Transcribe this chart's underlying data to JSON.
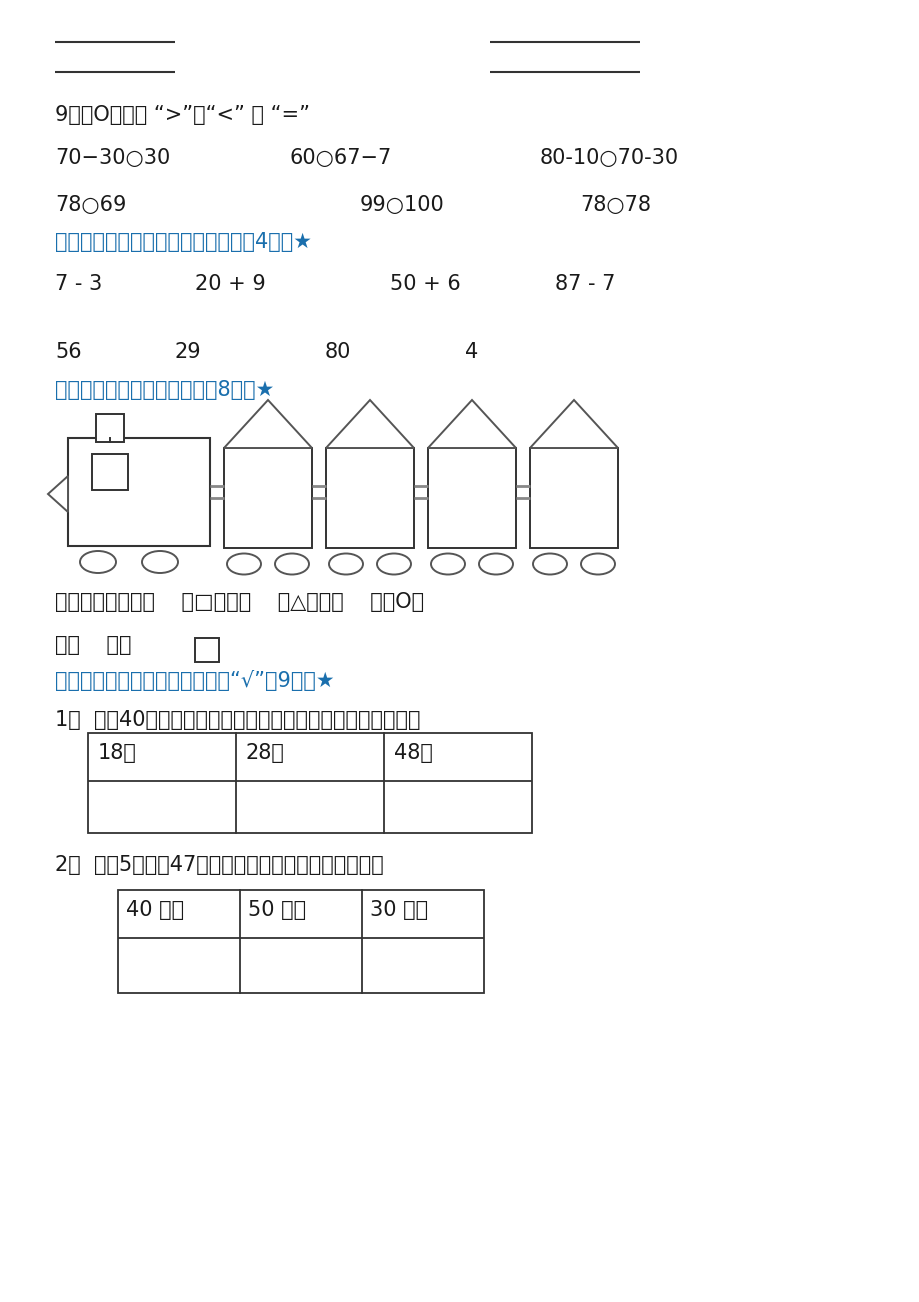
{
  "bg_color": "#ffffff",
  "text_color": "#1a1a1a",
  "blue_color": "#1a6fad",
  "q9_title": "9、在O里填上 “>”、“<” 或 “=”",
  "q9_row1_a": "70−30○30",
  "q9_row1_b": "60○67−7",
  "q9_row1_c": "80-10○70-30",
  "q9_row2_a": "78○69",
  "q9_row2_b": "99○100",
  "q9_row2_c": "78○78",
  "sec3_title": "三、把算式与得数用线段连接起来（4分）★",
  "sec3_top": [
    "7 - 3",
    "20 + 9",
    "50 + 6",
    "87 - 7"
  ],
  "sec3_bot": [
    "56",
    "29",
    "80",
    "4"
  ],
  "sec4_title": "四、请你数一数，填一填：（8分）★",
  "sec4_desc": "这辆小火车里有（    ）□，有（    ）△，有（    ）个O，",
  "sec4_desc2": "有（    ）个 ",
  "sec5_title": "五、在你认为合适的答案下面打“√”（9分）★",
  "q51_text": "1、  梨有40个，苹果的个数比梨少得多，苹果可能有多少个？",
  "q51_cells": [
    "18个",
    "28个",
    "48个"
  ],
  "q52_text": "2、  三（5）班有47人去春游，坐哪辆汽车比较合适？",
  "q52_cells": [
    "40 座的",
    "50 座的",
    "30 座的"
  ]
}
